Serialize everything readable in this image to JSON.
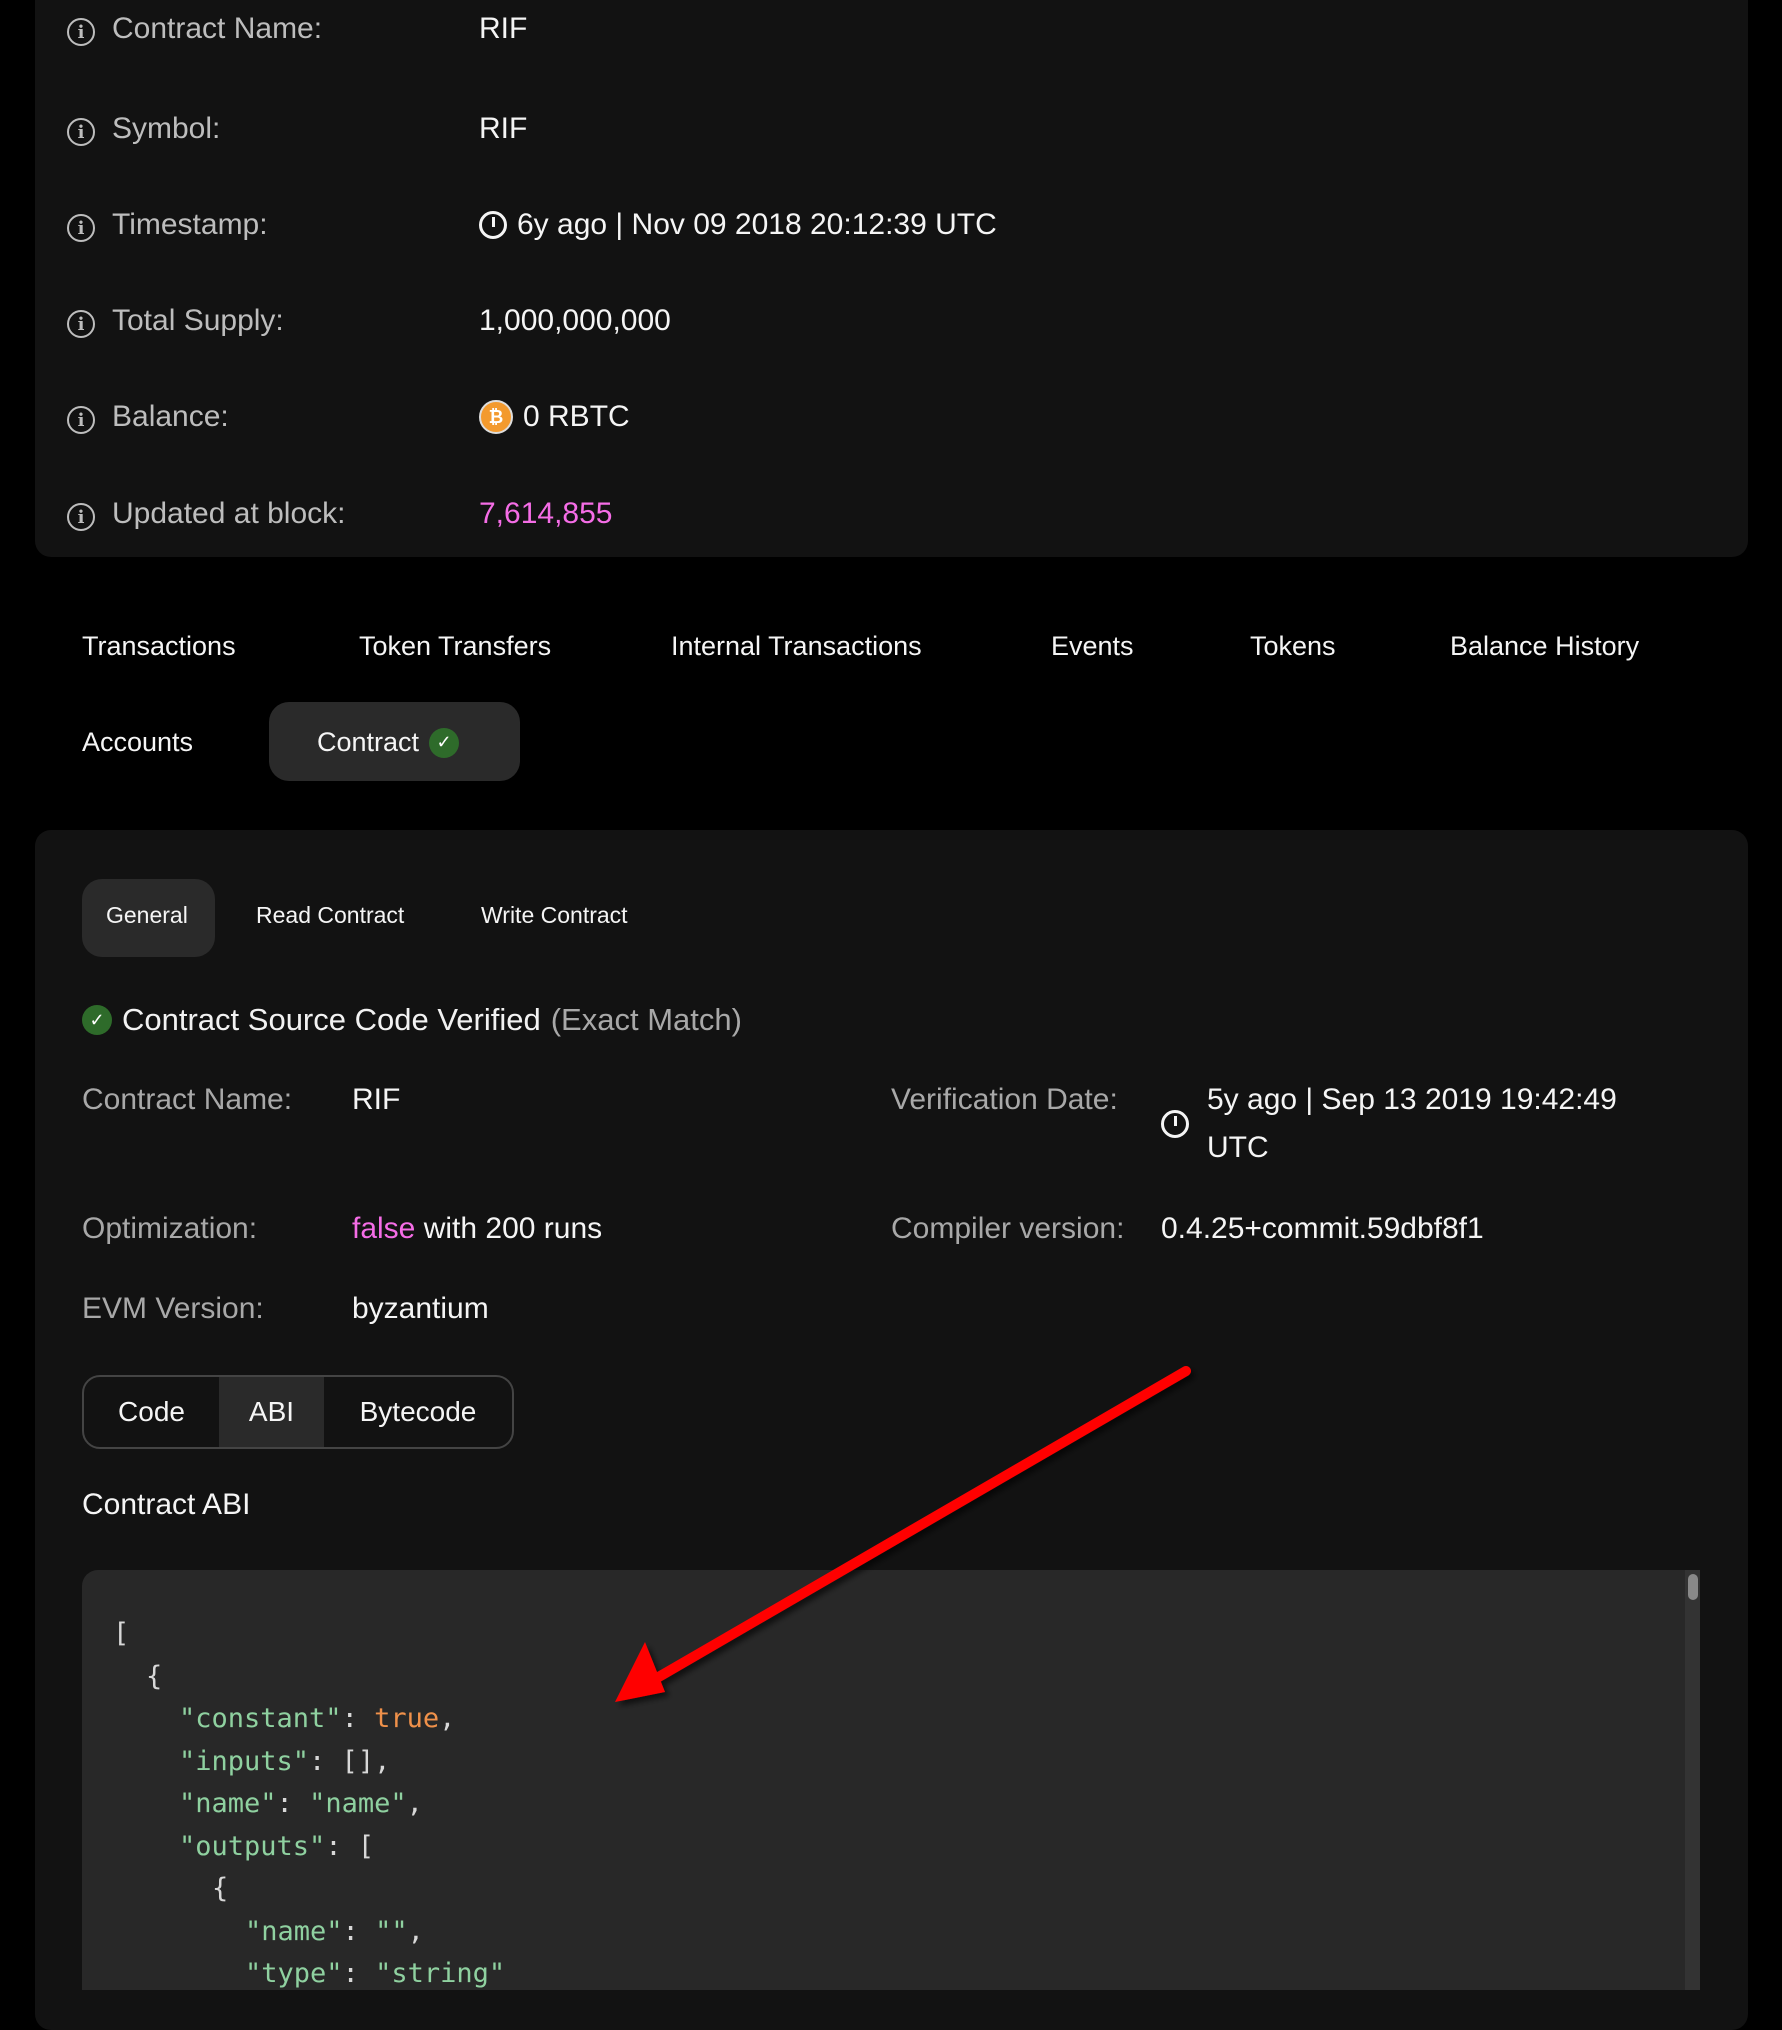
{
  "overview": {
    "rows": [
      {
        "label": "Contract Name:",
        "value": "RIF"
      },
      {
        "label": "Symbol:",
        "value": "RIF"
      },
      {
        "label": "Timestamp:",
        "value": "6y ago | Nov 09 2018 20:12:39 UTC",
        "icon": "clock-icon"
      },
      {
        "label": "Total Supply:",
        "value": "1,000,000,000"
      },
      {
        "label": "Balance:",
        "value": "0 RBTC",
        "icon": "rbtc-coin-icon"
      },
      {
        "label": "Updated at block:",
        "value": "7,614,855",
        "color": "#f56de6"
      }
    ]
  },
  "tabs": [
    "Transactions",
    "Token Transfers",
    "Internal Transactions",
    "Events",
    "Tokens",
    "Balance History",
    "Accounts",
    "Contract"
  ],
  "active_tab": "Contract",
  "subtabs": [
    "General",
    "Read Contract",
    "Write Contract"
  ],
  "active_subtab": "General",
  "verified": {
    "title": "Contract Source Code Verified",
    "match": "(Exact Match)"
  },
  "details": {
    "contract_name_label": "Contract Name:",
    "contract_name": "RIF",
    "verification_date_label": "Verification Date:",
    "verification_date_1": "5y ago | Sep 13 2019 19:42:49",
    "verification_date_2": "UTC",
    "optimization_label": "Optimization:",
    "optimization_flag": "false",
    "optimization_runs": "with 200 runs",
    "compiler_label": "Compiler version:",
    "compiler": "0.4.25+commit.59dbf8f1",
    "evm_label": "EVM Version:",
    "evm": "byzantium"
  },
  "code_tabs": [
    "Code",
    "ABI",
    "Bytecode"
  ],
  "active_code_tab": "ABI",
  "abi_title": "Contract ABI",
  "abi_lines": [
    {
      "indent": 0,
      "parts": [
        {
          "t": "[",
          "c": "p"
        }
      ]
    },
    {
      "indent": 1,
      "parts": [
        {
          "t": "{",
          "c": "p"
        }
      ]
    },
    {
      "indent": 2,
      "parts": [
        {
          "t": "\"constant\"",
          "c": "k"
        },
        {
          "t": ": ",
          "c": "p"
        },
        {
          "t": "true",
          "c": "o"
        },
        {
          "t": ",",
          "c": "p"
        }
      ]
    },
    {
      "indent": 2,
      "parts": [
        {
          "t": "\"inputs\"",
          "c": "k"
        },
        {
          "t": ": [],",
          "c": "p"
        }
      ]
    },
    {
      "indent": 2,
      "parts": [
        {
          "t": "\"name\"",
          "c": "k"
        },
        {
          "t": ": ",
          "c": "p"
        },
        {
          "t": "\"name\"",
          "c": "k"
        },
        {
          "t": ",",
          "c": "p"
        }
      ]
    },
    {
      "indent": 2,
      "parts": [
        {
          "t": "\"outputs\"",
          "c": "k"
        },
        {
          "t": ": [",
          "c": "p"
        }
      ]
    },
    {
      "indent": 3,
      "parts": [
        {
          "t": "{",
          "c": "p"
        }
      ]
    },
    {
      "indent": 4,
      "parts": [
        {
          "t": "\"name\"",
          "c": "k"
        },
        {
          "t": ": ",
          "c": "p"
        },
        {
          "t": "\"\"",
          "c": "k"
        },
        {
          "t": ",",
          "c": "p"
        }
      ]
    },
    {
      "indent": 4,
      "parts": [
        {
          "t": "\"type\"",
          "c": "k"
        },
        {
          "t": ": ",
          "c": "p"
        },
        {
          "t": "\"string\"",
          "c": "k"
        }
      ]
    }
  ]
}
